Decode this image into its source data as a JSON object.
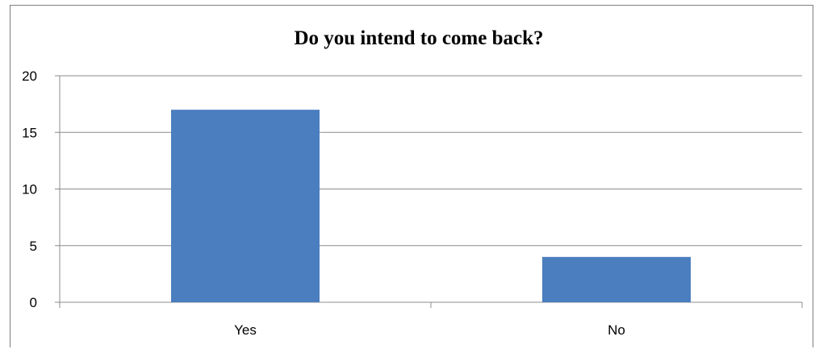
{
  "chart_data": {
    "type": "bar",
    "title": "Do you intend to come back?",
    "categories": [
      "Yes",
      "No"
    ],
    "values": [
      17,
      4
    ],
    "ylim": [
      0,
      20
    ],
    "yticks": [
      0,
      5,
      10,
      15,
      20
    ],
    "grid": true,
    "legend": "none",
    "bar_color": "#4a7ebf",
    "xlabel": "",
    "ylabel": ""
  }
}
